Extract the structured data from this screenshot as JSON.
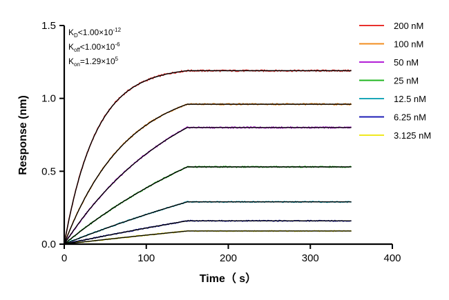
{
  "chart_data": {
    "type": "line",
    "xlabel": "Time（ s）",
    "ylabel": "Response (nm)",
    "xlim": [
      0,
      400
    ],
    "ylim": [
      0,
      1.5
    ],
    "xticks": [
      "0",
      "100",
      "200",
      "300",
      "400"
    ],
    "yticks": [
      "0.0",
      "0.5",
      "1.0",
      "1.5"
    ],
    "grid": false,
    "legend_position": "top-right",
    "association_end": 150,
    "x_end": 350,
    "annotations": [
      {
        "base": "K",
        "sub": "D",
        "text": "<1.00×10",
        "sup": "-12"
      },
      {
        "base": "K",
        "sub": "off",
        "text": "<1.00×10",
        "sup": "-6"
      },
      {
        "base": "K",
        "sub": "on",
        "text": "=1.29×10",
        "sup": "5"
      }
    ],
    "fit_color": "#000000",
    "series": [
      {
        "name": "200 nM",
        "color": "#e8302d",
        "plateau": 1.19,
        "k": 0.0258
      },
      {
        "name": "100 nM",
        "color": "#f28c1e",
        "plateau": 0.96,
        "k": 0.0133
      },
      {
        "name": "50 nM",
        "color": "#b21ed6",
        "plateau": 0.8,
        "k": 0.007
      },
      {
        "name": "25 nM",
        "color": "#1fb51f",
        "plateau": 0.53,
        "k": 0.0038
      },
      {
        "name": "12.5 nM",
        "color": "#1aa6b8",
        "plateau": 0.29,
        "k": 0.0021
      },
      {
        "name": "6.25 nM",
        "color": "#1d1db5",
        "plateau": 0.16,
        "k": 0.0014
      },
      {
        "name": "3.125 nM",
        "color": "#f0e81e",
        "plateau": 0.09,
        "k": 0.0011
      }
    ]
  }
}
